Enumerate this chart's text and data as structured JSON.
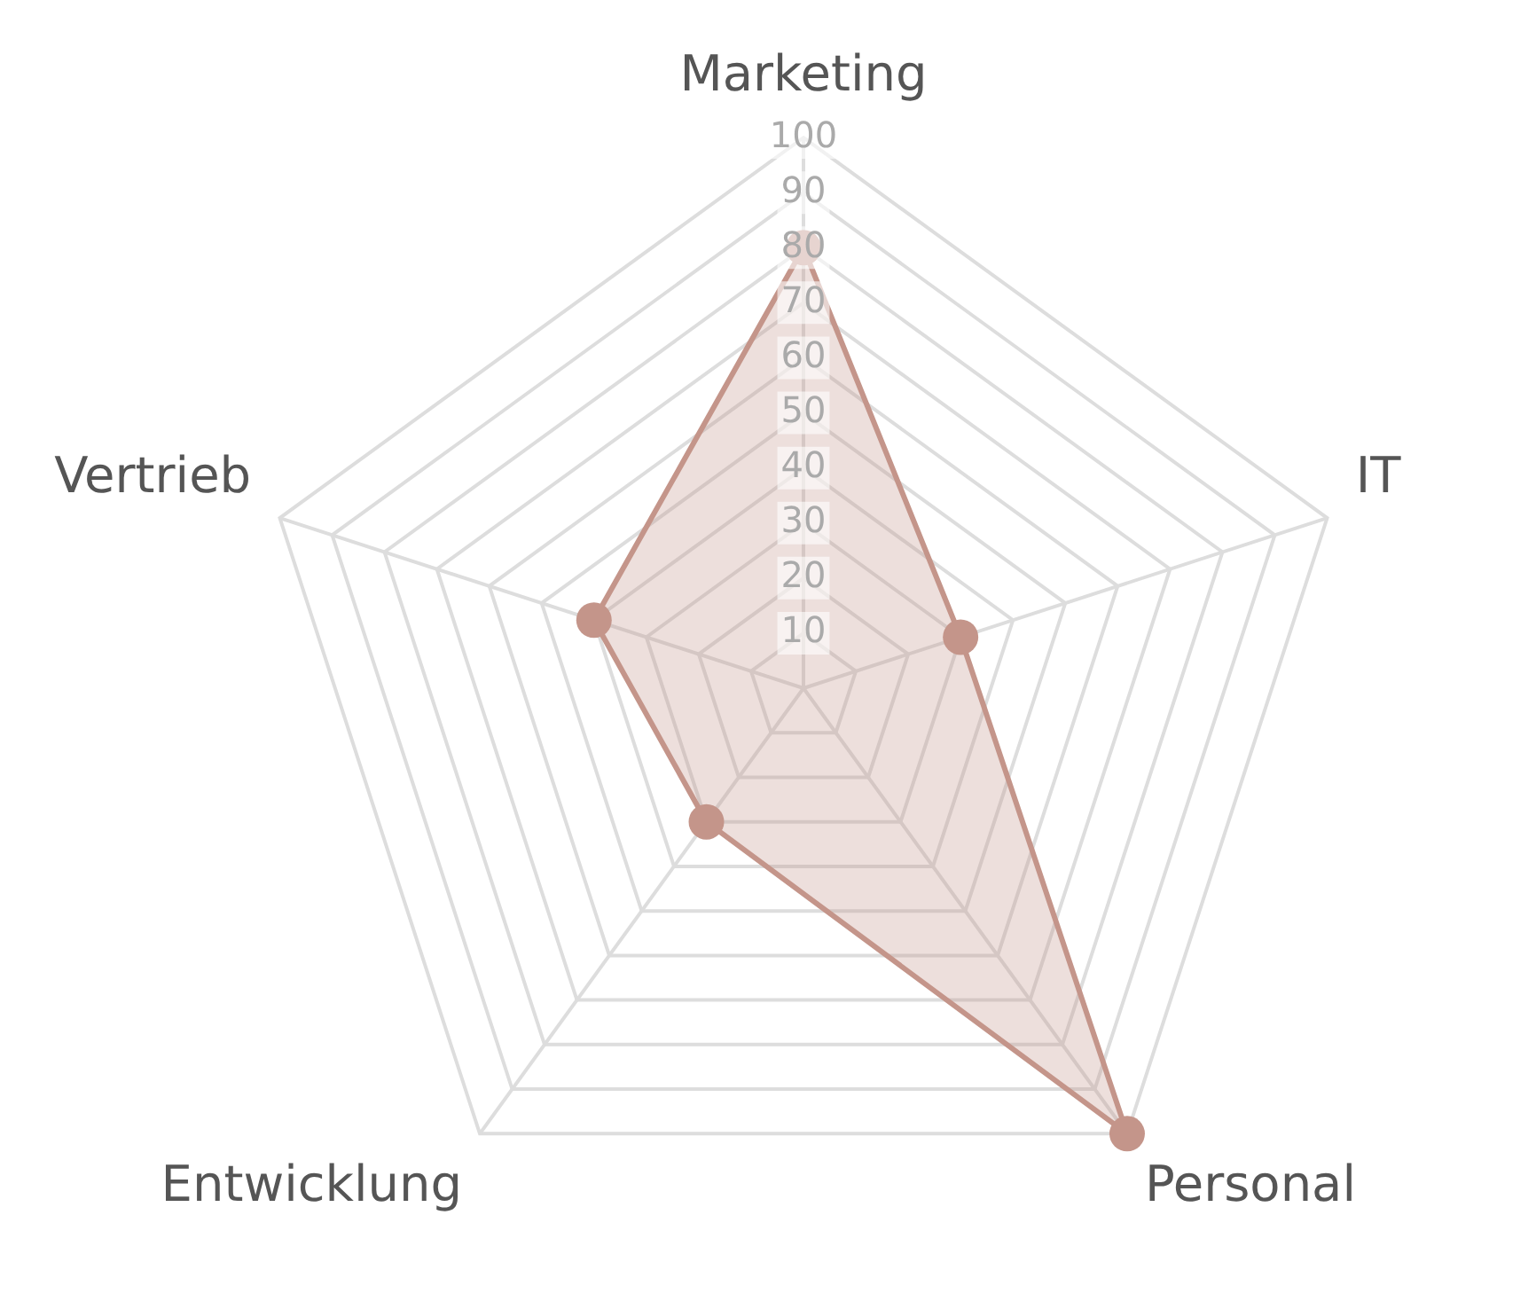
{
  "chart_data": {
    "type": "radar",
    "categories": [
      "Marketing",
      "IT",
      "Personal",
      "Entwicklung",
      "Vertrieb"
    ],
    "series": [
      {
        "color": "#c4958a",
        "values": [
          80,
          30,
          100,
          30,
          40
        ]
      }
    ],
    "ylim": [
      0,
      100
    ],
    "yticks": [
      10,
      20,
      30,
      40,
      50,
      60,
      70,
      80,
      90,
      100
    ],
    "grid": true,
    "legend": false,
    "marker": "circle"
  }
}
